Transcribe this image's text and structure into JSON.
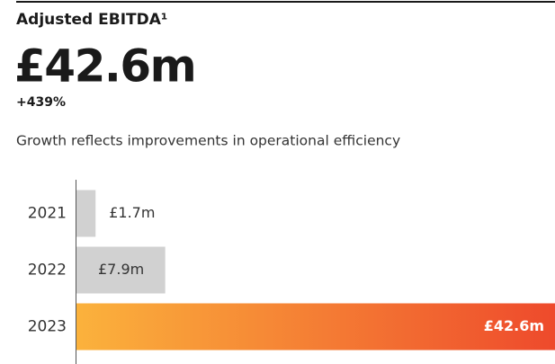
{
  "chart_data": {
    "type": "bar",
    "orientation": "horizontal",
    "title": "Adjusted EBITDA¹",
    "headline": "£42.6m",
    "change": "+439%",
    "subtitle": "Growth reflects improvements in operational efficiency",
    "categories": [
      "2021",
      "2022",
      "2023"
    ],
    "values": [
      1.7,
      7.9,
      42.6
    ],
    "value_labels": [
      "£1.7m",
      "£7.9m",
      "£42.6m"
    ],
    "colors": [
      "#d1d1d1",
      "#d1d1d1",
      [
        "#fbb23c",
        "#ee4a2c"
      ]
    ]
  }
}
